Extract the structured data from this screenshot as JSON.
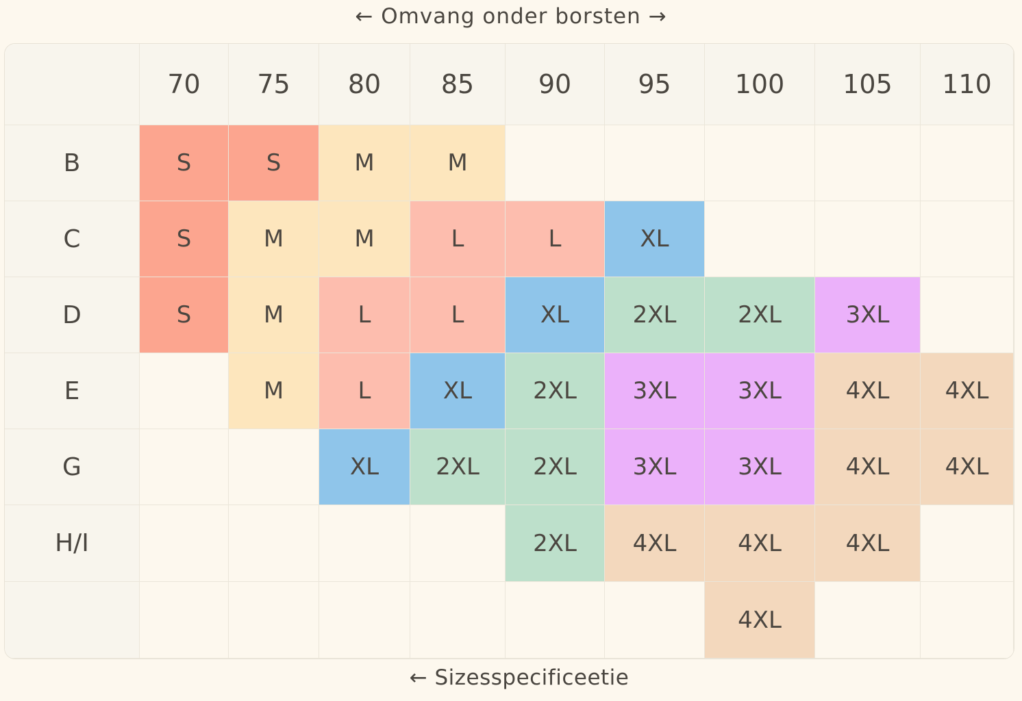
{
  "chart_data": {
    "type": "table",
    "title": "← Omvang onder borsten →",
    "xlabel": "← Omvang onder borsten →",
    "footer": "← Sizesspecificeetie",
    "columns": [
      "70",
      "75",
      "80",
      "85",
      "90",
      "95",
      "100",
      "105",
      "110"
    ],
    "rows": [
      {
        "label": "B",
        "cells": [
          "S",
          "S",
          "M",
          "M",
          "",
          "",
          "",
          "",
          ""
        ]
      },
      {
        "label": "C",
        "cells": [
          "S",
          "M",
          "M",
          "L",
          "L",
          "XL",
          "",
          "",
          ""
        ]
      },
      {
        "label": "D",
        "cells": [
          "S",
          "M",
          "L",
          "L",
          "XL",
          "2XL",
          "2XL",
          "3XL",
          ""
        ]
      },
      {
        "label": "E",
        "cells": [
          "",
          "M",
          "L",
          "XL",
          "2XL",
          "3XL",
          "3XL",
          "4XL",
          "4XL"
        ]
      },
      {
        "label": "G",
        "cells": [
          "",
          "",
          "XL",
          "2XL",
          "2XL",
          "3XL",
          "3XL",
          "4XL",
          "4XL"
        ]
      },
      {
        "label": "H/I",
        "cells": [
          "",
          "",
          "",
          "",
          "2XL",
          "4XL",
          "4XL",
          "4XL",
          ""
        ]
      },
      {
        "label": "",
        "cells": [
          "",
          "",
          "",
          "",
          "",
          "",
          "4XL",
          "",
          ""
        ]
      }
    ],
    "size_colors": {
      "S": "#fca58f",
      "M": "#fde6bd",
      "L": "#fdbdae",
      "XL": "#8fc5ea",
      "2XL": "#bde0cb",
      "3XL": "#ebb1fa",
      "4XL": "#f3d8bd"
    }
  }
}
